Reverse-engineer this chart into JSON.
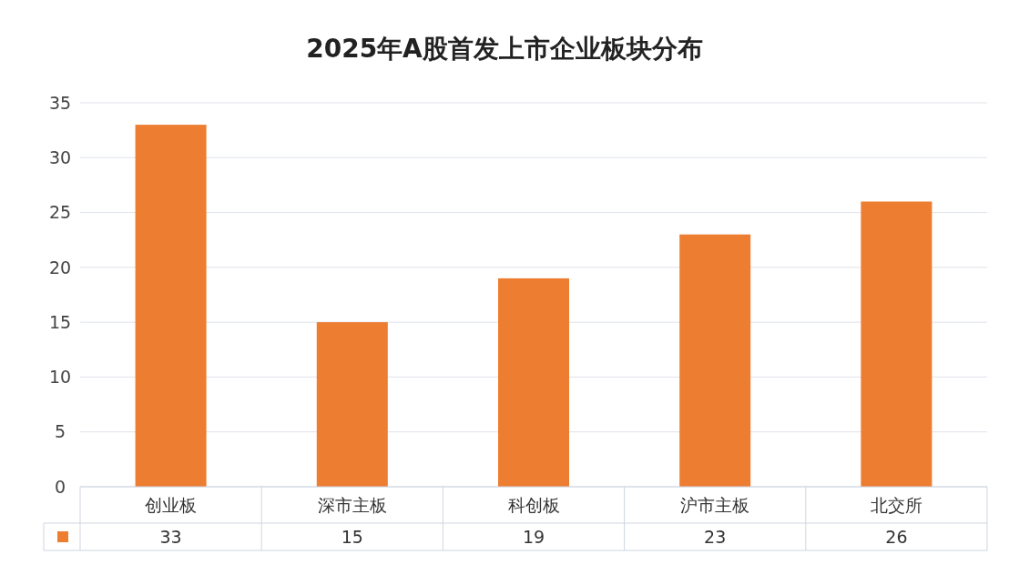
{
  "chart_data": {
    "type": "bar",
    "title": "2025年A股首发上市企业板块分布",
    "categories": [
      "创业板",
      "深市主板",
      "科创板",
      "沪市主板",
      "北交所"
    ],
    "values": [
      33,
      15,
      19,
      23,
      26
    ],
    "color": "#ed7d31",
    "ylim": [
      0,
      35
    ],
    "yticks": [
      0,
      5,
      10,
      15,
      20,
      25,
      30,
      35
    ],
    "grid": "y",
    "data_labels": true
  }
}
